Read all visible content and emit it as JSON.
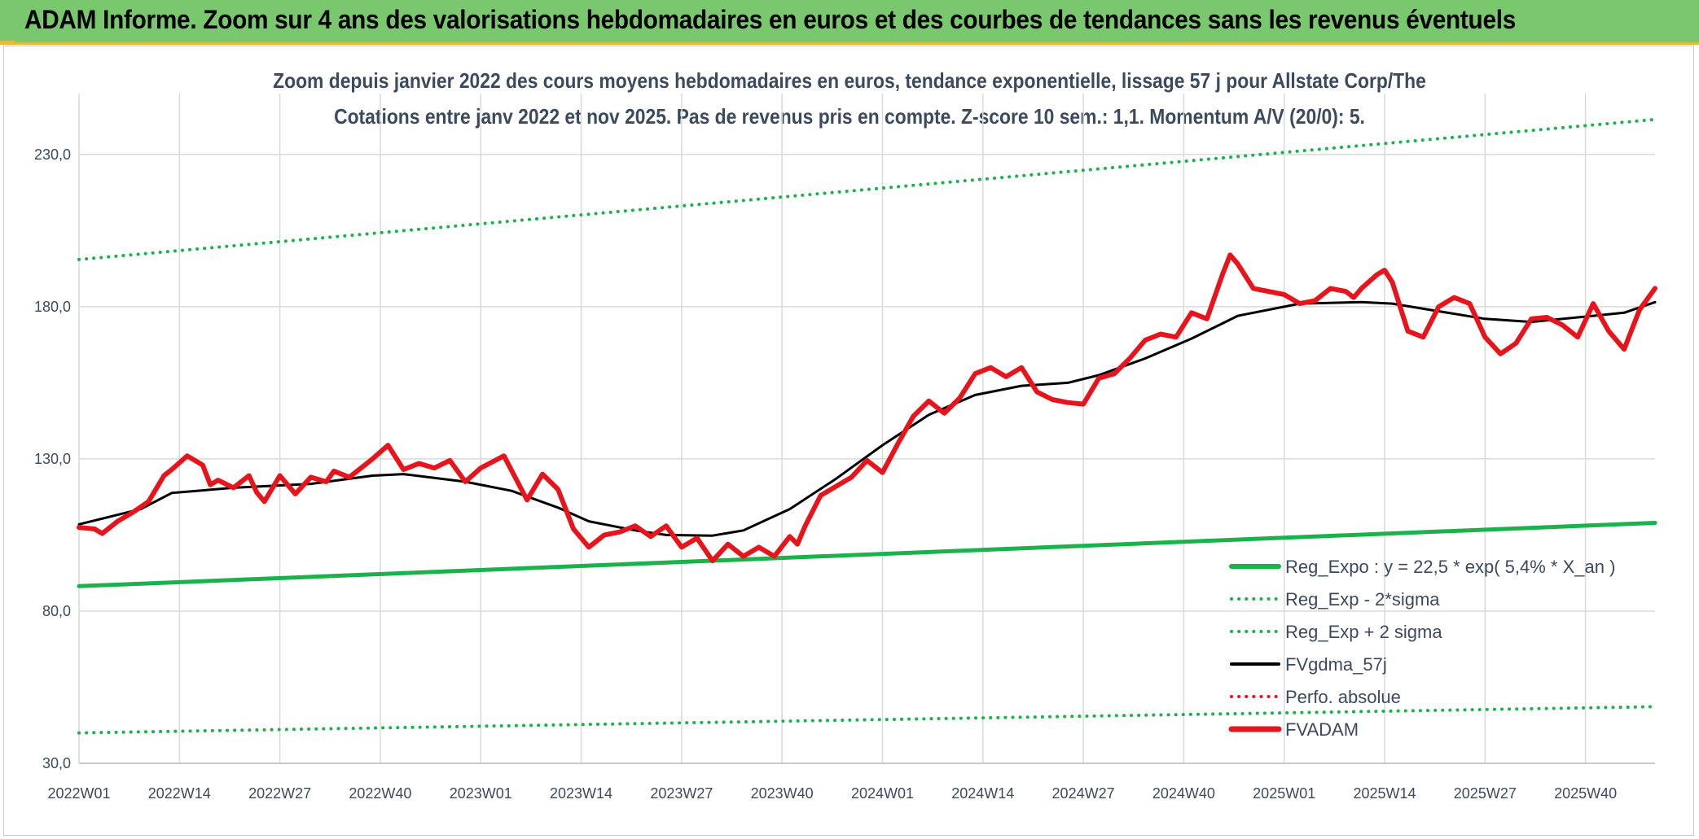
{
  "banner": {
    "title": "ADAM Informe. Zoom sur 4 ans des valorisations hebdomadaires en euros et des courbes de tendances sans les revenus éventuels"
  },
  "colors": {
    "banner_bg": "#79c86e",
    "banner_accent": "#e8b93a",
    "reg_green": "#19b24b",
    "fvadam_red": "#e8141c",
    "fvgdma_black": "#000000",
    "perfo_red": "#e8141c",
    "grid": "#d9d9d9",
    "text": "#3b4a5e"
  },
  "chart_data": {
    "type": "line",
    "title": "Zoom depuis janvier 2022 des cours moyens hebdomadaires en euros, tendance exponentielle, lissage 57 j pour Allstate Corp/The",
    "subtitle": "Cotations entre janv 2022 et nov 2025. Pas de revenus pris en compte. Z-score 10 sem.: 1,1. Momentum A/V (20/0): 5.",
    "xlabel": "",
    "ylabel": "",
    "ylim": [
      30,
      250
    ],
    "yticks": [
      30,
      80,
      130,
      180,
      230
    ],
    "ytick_labels": [
      "30,0",
      "80,0",
      "130,0",
      "180,0",
      "230,0"
    ],
    "x_tick_labels": [
      "2022W01",
      "2022W14",
      "2022W27",
      "2022W40",
      "2023W01",
      "2023W14",
      "2023W27",
      "2023W40",
      "2024W01",
      "2024W14",
      "2024W27",
      "2024W40",
      "2025W01",
      "2025W14",
      "2025W27",
      "2025W40"
    ],
    "x_tick_index": [
      0,
      13,
      26,
      39,
      52,
      65,
      78,
      91,
      104,
      117,
      130,
      143,
      156,
      169,
      182,
      195
    ],
    "n_points": 205,
    "legend_position": "bottom-right",
    "series": [
      {
        "name": "Reg_Expo : y = 22,5 * exp( 5,4% *  X_an )",
        "style": "solid",
        "color": "#19b24b",
        "width": 5,
        "x": [
          0,
          204
        ],
        "values": [
          88.2,
          109.0
        ]
      },
      {
        "name": "Reg_Exp - 2*sigma",
        "style": "dotted",
        "color": "#19b24b",
        "width": 4,
        "x": [
          0,
          204
        ],
        "values": [
          40.0,
          48.6
        ]
      },
      {
        "name": "Reg_Exp + 2 sigma",
        "style": "dotted",
        "color": "#19b24b",
        "width": 4,
        "x": [
          0,
          204
        ],
        "values": [
          195.5,
          241.5
        ]
      },
      {
        "name": "FVgdma_57j",
        "style": "solid",
        "color": "#000000",
        "width": 3,
        "x": [
          0,
          8,
          12,
          20,
          30,
          38,
          42,
          50,
          56,
          62,
          66,
          72,
          76,
          82,
          86,
          92,
          98,
          104,
          110,
          116,
          122,
          128,
          132,
          138,
          144,
          150,
          158,
          166,
          170,
          176,
          182,
          188,
          196,
          200,
          204
        ],
        "values": [
          108.5,
          113.5,
          118.8,
          120.5,
          121.8,
          124.5,
          125.0,
          122.5,
          119.5,
          114.0,
          109.5,
          106.5,
          105.0,
          104.8,
          106.5,
          113.5,
          123.5,
          134.5,
          144.5,
          151.0,
          154.0,
          155.0,
          157.5,
          163.0,
          169.5,
          177.0,
          181.0,
          181.5,
          181.0,
          178.5,
          176.0,
          175.0,
          177.0,
          178.0,
          181.5
        ]
      },
      {
        "name": "Perfo. absolue",
        "style": "dotted",
        "color": "#e8141c",
        "width": 4,
        "x": [],
        "values": []
      },
      {
        "name": "FVADAM",
        "style": "solid",
        "color": "#e8141c",
        "width": 6,
        "x": [
          0,
          2,
          3,
          5,
          7,
          9,
          11,
          12,
          14,
          16,
          17,
          18,
          20,
          22,
          23,
          24,
          26,
          28,
          30,
          32,
          33,
          35,
          37,
          38,
          40,
          42,
          44,
          46,
          48,
          50,
          52,
          55,
          58,
          60,
          62,
          64,
          66,
          68,
          70,
          72,
          74,
          76,
          78,
          80,
          82,
          84,
          86,
          88,
          90,
          92,
          93,
          94,
          96,
          98,
          100,
          102,
          104,
          106,
          108,
          110,
          112,
          114,
          116,
          118,
          120,
          122,
          124,
          126,
          128,
          130,
          132,
          134,
          136,
          138,
          140,
          142,
          144,
          146,
          148,
          149,
          150,
          152,
          154,
          156,
          158,
          160,
          162,
          164,
          165,
          166,
          168,
          169,
          170,
          172,
          174,
          176,
          178,
          180,
          182,
          184,
          186,
          188,
          190,
          192,
          194,
          196,
          198,
          200,
          202,
          204
        ],
        "values": [
          107.5,
          107.0,
          105.5,
          109.5,
          112.5,
          116.0,
          124.5,
          126.5,
          131.0,
          128.0,
          121.5,
          123.0,
          120.5,
          124.5,
          119.0,
          116.0,
          124.5,
          118.5,
          124.0,
          122.5,
          126.0,
          124.0,
          128.0,
          130.0,
          134.5,
          126.5,
          128.5,
          127.0,
          129.5,
          122.5,
          127.0,
          131.0,
          116.5,
          125.0,
          120.0,
          107.0,
          101.0,
          105.0,
          106.0,
          108.0,
          104.5,
          108.0,
          101.0,
          104.0,
          96.5,
          102.0,
          98.0,
          101.0,
          98.0,
          104.5,
          102.0,
          108.0,
          118.0,
          121.0,
          124.0,
          129.5,
          125.5,
          135.0,
          144.0,
          149.0,
          145.0,
          150.0,
          158.0,
          160.0,
          157.0,
          160.0,
          152.0,
          149.5,
          148.5,
          148.0,
          156.5,
          158.0,
          163.0,
          169.0,
          171.0,
          170.0,
          178.0,
          176.0,
          190.5,
          197.0,
          194.0,
          186.0,
          185.0,
          184.0,
          181.0,
          182.0,
          186.0,
          185.0,
          183.0,
          186.0,
          190.5,
          192.0,
          188.0,
          172.0,
          170.0,
          180.0,
          183.0,
          181.0,
          170.0,
          164.5,
          168.0,
          176.0,
          176.5,
          174.0,
          170.0,
          181.0,
          172.0,
          166.0,
          179.0,
          186.0
        ]
      }
    ]
  }
}
